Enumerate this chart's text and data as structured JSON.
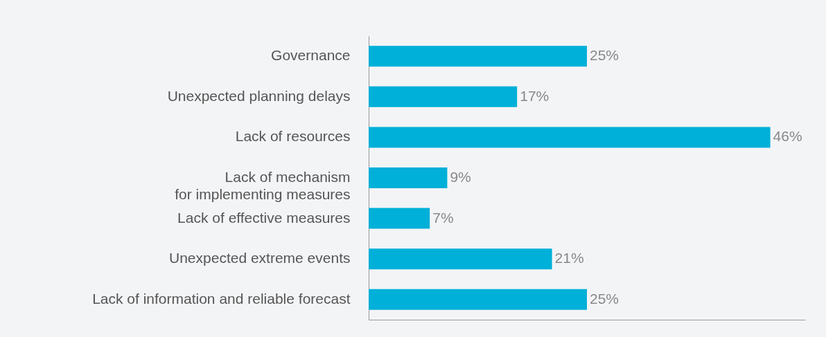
{
  "chart_data": {
    "type": "bar",
    "orientation": "horizontal",
    "categories": [
      "Governance",
      "Unexpected planning delays",
      "Lack of resources",
      "Lack of mechanism\nfor implementing measures",
      "Lack of effective measures",
      "Unexpected extreme events",
      "Lack of information and reliable forecast"
    ],
    "values": [
      25,
      17,
      46,
      9,
      7,
      21,
      25
    ],
    "value_labels": [
      "25%",
      "17%",
      "46%",
      "9%",
      "7%",
      "21%",
      "25%"
    ],
    "color": "#00b0d8",
    "grid": false
  }
}
